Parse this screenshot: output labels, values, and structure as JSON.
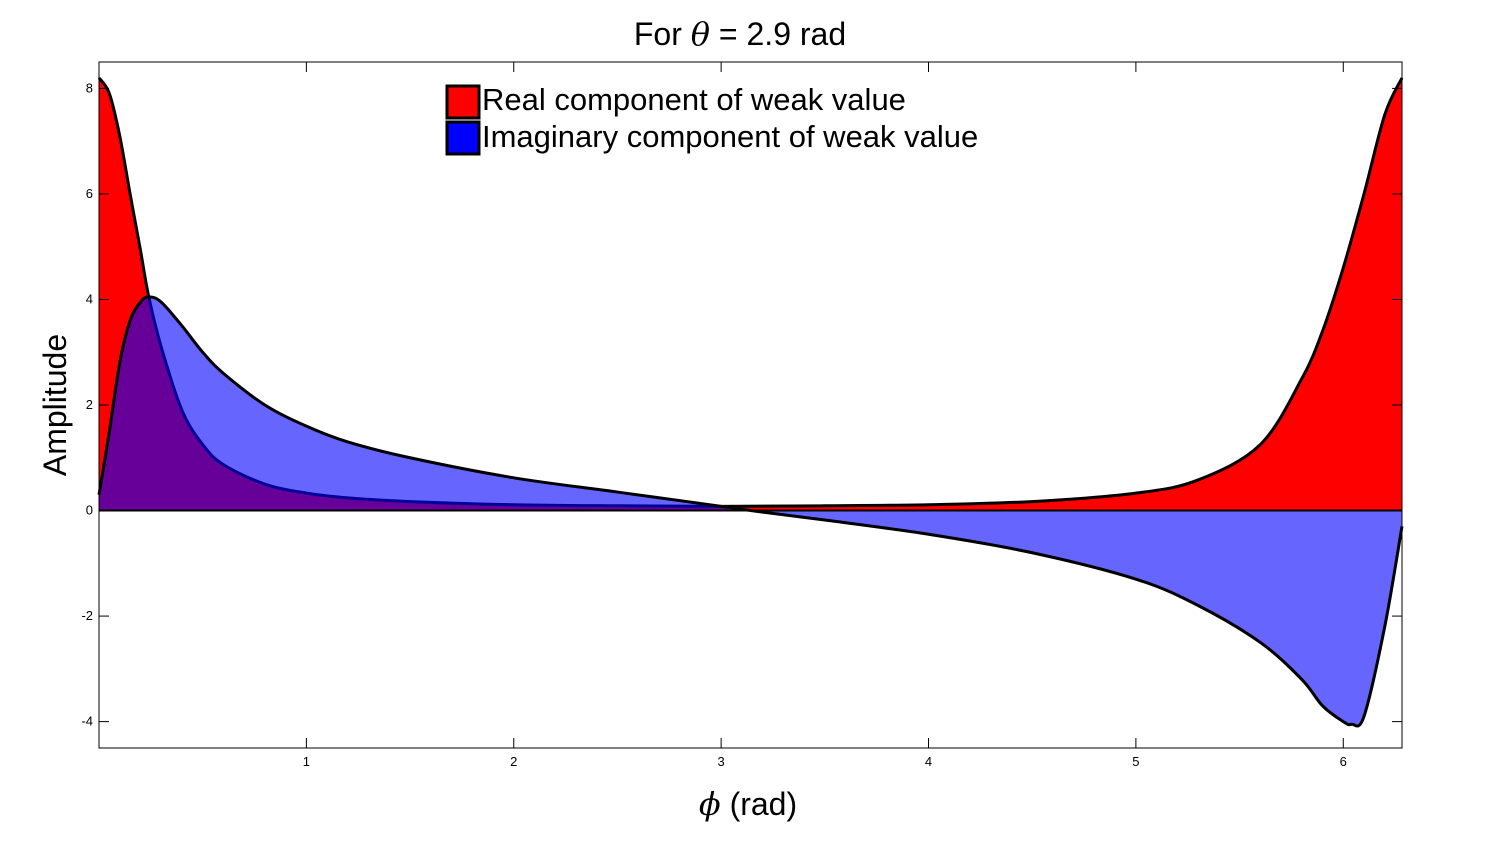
{
  "chart_data": {
    "type": "area",
    "title_prefix": "For ",
    "title_symbol": "θ",
    "title_suffix": " = 2.9 rad",
    "xlabel_symbol": "ϕ",
    "xlabel_suffix": " (rad)",
    "ylabel": "Amplitude",
    "xlim": [
      0,
      6.2832
    ],
    "ylim": [
      -4.5,
      8.5
    ],
    "xticks": [
      1,
      2,
      3,
      4,
      5,
      6
    ],
    "yticks": [
      -4,
      -2,
      0,
      2,
      4,
      6,
      8
    ],
    "grid": false,
    "legend_position": "top-center",
    "theta": 2.9,
    "series": [
      {
        "name": "Real component of weak value",
        "color": "#ff0000",
        "fill_opacity": 1,
        "x": [
          0,
          0.05,
          0.1,
          0.15,
          0.2,
          0.24,
          0.3,
          0.4,
          0.5,
          0.6,
          0.8,
          1.0,
          1.2,
          1.5,
          2.0,
          2.5,
          3.0,
          3.5,
          4.0,
          4.5,
          5.0,
          5.3,
          5.6,
          5.8,
          5.9,
          6.0,
          6.1,
          6.2,
          6.2832
        ],
        "values": [
          8.2,
          7.9,
          7.1,
          6.0,
          4.93,
          4.05,
          3.1,
          1.9,
          1.25,
          0.87,
          0.5,
          0.33,
          0.24,
          0.17,
          0.11,
          0.09,
          0.08,
          0.09,
          0.11,
          0.17,
          0.33,
          0.58,
          1.25,
          2.5,
          3.4,
          4.6,
          6.0,
          7.5,
          8.2
        ]
      },
      {
        "name": "Imaginary component of weak value",
        "color": "#0000ff",
        "fill_opacity": 0.6,
        "x": [
          0,
          0.05,
          0.1,
          0.15,
          0.2,
          0.24,
          0.3,
          0.4,
          0.5,
          0.6,
          0.8,
          1.0,
          1.2,
          1.5,
          2.0,
          2.5,
          3.0,
          3.2,
          3.5,
          4.0,
          4.5,
          5.0,
          5.3,
          5.6,
          5.8,
          5.9,
          6.0,
          6.04,
          6.1,
          6.2,
          6.2832
        ],
        "values": [
          0.3,
          1.5,
          2.8,
          3.6,
          3.95,
          4.05,
          3.95,
          3.5,
          3.0,
          2.6,
          2.0,
          1.6,
          1.3,
          1.0,
          0.62,
          0.35,
          0.08,
          -0.03,
          -0.18,
          -0.45,
          -0.8,
          -1.3,
          -1.8,
          -2.5,
          -3.2,
          -3.7,
          -4.0,
          -4.05,
          -3.9,
          -2.2,
          -0.3
        ]
      }
    ]
  }
}
